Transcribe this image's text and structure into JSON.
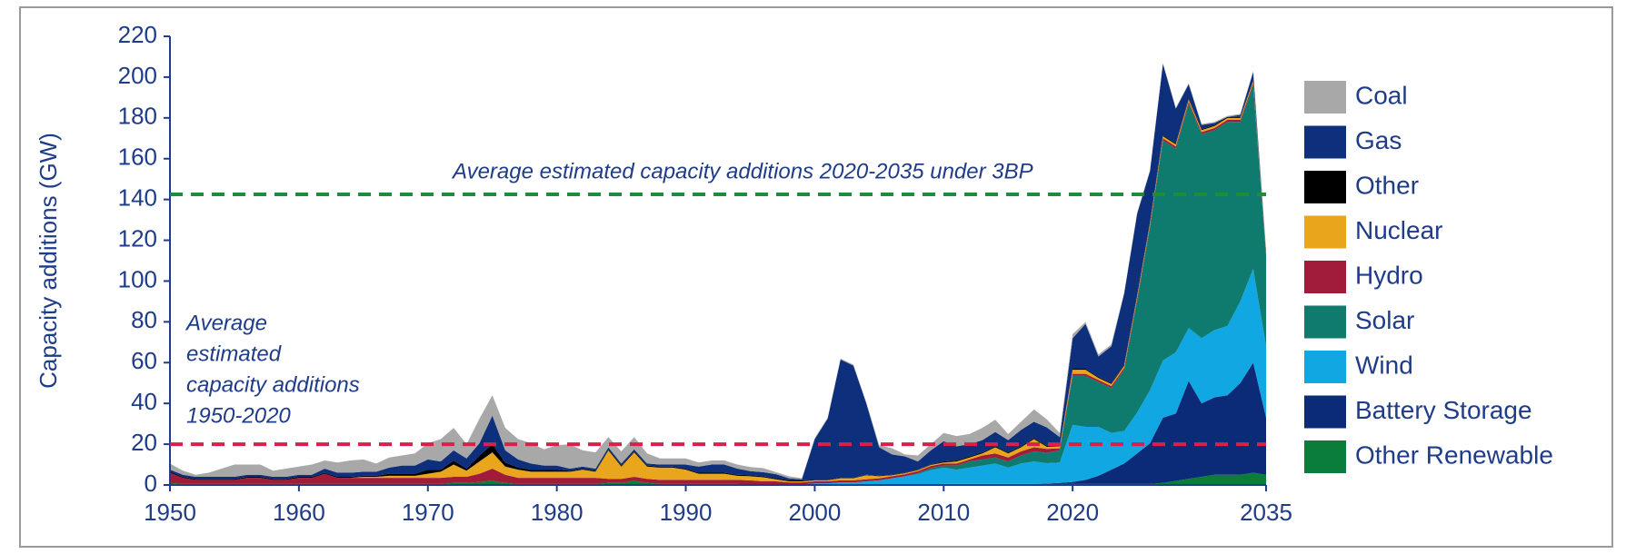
{
  "chart_data": {
    "type": "stacked-area",
    "y_label": "Capacity additions (GW)",
    "x": [
      1950,
      1951,
      1952,
      1953,
      1954,
      1955,
      1956,
      1957,
      1958,
      1959,
      1960,
      1961,
      1962,
      1963,
      1964,
      1965,
      1966,
      1967,
      1968,
      1969,
      1970,
      1971,
      1972,
      1973,
      1974,
      1975,
      1976,
      1977,
      1978,
      1979,
      1980,
      1981,
      1982,
      1983,
      1984,
      1985,
      1986,
      1987,
      1988,
      1989,
      1990,
      1991,
      1992,
      1993,
      1994,
      1995,
      1996,
      1997,
      1998,
      1999,
      2000,
      2001,
      2002,
      2003,
      2004,
      2005,
      2006,
      2007,
      2008,
      2009,
      2010,
      2011,
      2012,
      2013,
      2014,
      2015,
      2016,
      2017,
      2018,
      2019,
      2020,
      2021,
      2022,
      2023,
      2024,
      2025,
      2026,
      2027,
      2028,
      2029,
      2030,
      2031,
      2032,
      2033,
      2034,
      2035
    ],
    "xlim": [
      1950,
      2035
    ],
    "xticks": [
      1950,
      1960,
      1970,
      1980,
      1990,
      2000,
      2010,
      2020,
      2035
    ],
    "ylim": [
      0,
      220
    ],
    "yticks": [
      0,
      20,
      40,
      60,
      80,
      100,
      120,
      140,
      160,
      180,
      200,
      220
    ],
    "series": [
      {
        "name": "Other Renewable",
        "color": "#0b7d3b",
        "values": [
          1,
          0.5,
          0.5,
          0.5,
          0.5,
          0.5,
          0.5,
          0.5,
          0.5,
          0.5,
          0.5,
          0.5,
          0.5,
          0.5,
          0.5,
          0.5,
          0.5,
          0.5,
          0.5,
          0.5,
          0.5,
          0.5,
          1,
          1,
          1.5,
          2,
          1,
          0.5,
          0.5,
          0.5,
          0.5,
          0.5,
          0.5,
          0.5,
          1,
          1,
          2,
          1,
          0.5,
          0.5,
          0.5,
          0.5,
          0.5,
          0.5,
          0.5,
          0.3,
          0.3,
          0.3,
          0.3,
          0.3,
          0.3,
          0.3,
          0.3,
          0.3,
          0.3,
          0.3,
          0.3,
          0.3,
          0.3,
          0.3,
          0.5,
          0.5,
          0.5,
          0.5,
          0.5,
          0.5,
          0.5,
          0.5,
          0.5,
          0.5,
          0.5,
          0.5,
          0.5,
          0.5,
          0.5,
          0.5,
          0.5,
          1,
          2,
          3,
          4,
          5,
          5,
          5,
          6,
          5
        ]
      },
      {
        "name": "Battery Storage",
        "color": "#0b2a78",
        "values": [
          0,
          0,
          0,
          0,
          0,
          0,
          0,
          0,
          0,
          0,
          0,
          0,
          0,
          0,
          0,
          0,
          0,
          0,
          0,
          0,
          0,
          0,
          0,
          0,
          0,
          0,
          0,
          0,
          0,
          0,
          0,
          0,
          0,
          0,
          0,
          0,
          0,
          0,
          0,
          0,
          0,
          0,
          0,
          0,
          0,
          0,
          0,
          0,
          0,
          0,
          0,
          0,
          0,
          0,
          0,
          0,
          0,
          0,
          0,
          0,
          0,
          0,
          0,
          0,
          0,
          0,
          0,
          0,
          0.2,
          0.5,
          1,
          2,
          4,
          7,
          10,
          15,
          20,
          32,
          33,
          48,
          36,
          38,
          39,
          45,
          54,
          28
        ]
      },
      {
        "name": "Wind",
        "color": "#10a7e2",
        "values": [
          0,
          0,
          0,
          0,
          0,
          0,
          0,
          0,
          0,
          0,
          0,
          0,
          0,
          0,
          0,
          0,
          0,
          0,
          0,
          0,
          0,
          0,
          0,
          0,
          0,
          0,
          0,
          0,
          0,
          0,
          0,
          0,
          0,
          0,
          0,
          0,
          0,
          0,
          0,
          0,
          0,
          0,
          0,
          0,
          0,
          0,
          0,
          0,
          0,
          0,
          0.5,
          0.5,
          1,
          1,
          1.5,
          2,
          3,
          4,
          5,
          7,
          8,
          7,
          8,
          9,
          10,
          8,
          10,
          11,
          10,
          10,
          28,
          26,
          24,
          18,
          16,
          20,
          26,
          28,
          30,
          26,
          32,
          33,
          34,
          40,
          46,
          35
        ]
      },
      {
        "name": "Solar",
        "color": "#0f7b6e",
        "values": [
          0,
          0,
          0,
          0,
          0,
          0,
          0,
          0,
          0,
          0,
          0,
          0,
          0,
          0,
          0,
          0,
          0,
          0,
          0,
          0,
          0,
          0,
          0,
          0,
          0,
          0,
          0,
          0,
          0,
          0,
          0,
          0,
          0,
          0,
          0,
          0,
          0,
          0,
          0,
          0,
          0,
          0,
          0,
          0,
          0,
          0,
          0,
          0,
          0,
          0,
          0,
          0,
          0,
          0,
          0,
          0,
          0,
          0,
          0.5,
          1,
          1,
          2,
          3,
          3,
          3,
          3,
          4,
          5,
          5,
          6,
          24,
          25,
          22,
          22,
          30,
          55,
          80,
          108,
          100,
          110,
          100,
          98,
          100,
          88,
          90,
          45
        ]
      },
      {
        "name": "Hydro",
        "color": "#a11c3b",
        "values": [
          5,
          3,
          2,
          2,
          2,
          2,
          3,
          3,
          2,
          2,
          3,
          3,
          5,
          3,
          3,
          3,
          3,
          3,
          3,
          3,
          3,
          3,
          3,
          3,
          4,
          6,
          4,
          3,
          3,
          3,
          3,
          3,
          3,
          3,
          2,
          2,
          2,
          2,
          2,
          2,
          2,
          2,
          2,
          2,
          2,
          2,
          1.5,
          1.5,
          1,
          1,
          1,
          1,
          1,
          1,
          1,
          1,
          1,
          1,
          1,
          1,
          1,
          1,
          1,
          2,
          2,
          2,
          2,
          2,
          2,
          1,
          1,
          1,
          1,
          1,
          1,
          1,
          1,
          1,
          1,
          1,
          1,
          1,
          1,
          1,
          1,
          0.5
        ]
      },
      {
        "name": "Nuclear",
        "color": "#e9a61c",
        "values": [
          0,
          0,
          0,
          0,
          0,
          0,
          0,
          0,
          0,
          0,
          0,
          0,
          0,
          0,
          0,
          0.5,
          0.5,
          1,
          1,
          1,
          2,
          3,
          6,
          3,
          6,
          8,
          4,
          4,
          3,
          3,
          3,
          3,
          4,
          3,
          14,
          6,
          12,
          6,
          6,
          6,
          5,
          3,
          3,
          3,
          2,
          2,
          2,
          1,
          0.5,
          0.5,
          0.5,
          0.5,
          1,
          1,
          2,
          1,
          0.5,
          0.5,
          0.5,
          0.5,
          0.5,
          1,
          1,
          1,
          3,
          2,
          2,
          4,
          1,
          1,
          2,
          2,
          1,
          1,
          1,
          1,
          1,
          1,
          1,
          1,
          1,
          1,
          1,
          1,
          1,
          1
        ]
      },
      {
        "name": "Other",
        "color": "#000000",
        "values": [
          0.5,
          0.5,
          0.5,
          0.5,
          0.5,
          0.5,
          0.5,
          0.5,
          0.5,
          0.5,
          0.5,
          0.5,
          0.5,
          0.5,
          0.5,
          0.5,
          0.5,
          1,
          1,
          1,
          2,
          1,
          2,
          1,
          3,
          4,
          2,
          1,
          1,
          1,
          1,
          0.5,
          0.5,
          0.5,
          0.5,
          0.5,
          0.5,
          0.5,
          0.5,
          0.5,
          0.5,
          0.5,
          0.5,
          0.5,
          0.5,
          0.5,
          0.5,
          0.5,
          0.5,
          0.5,
          0.2,
          0.2,
          0.2,
          0.2,
          0.2,
          0.2,
          0.2,
          0.2,
          0.2,
          0.2,
          0.5,
          0.5,
          0.5,
          0.5,
          0.5,
          0.5,
          0.5,
          0.5,
          0.5,
          0.5,
          0.5,
          0.5,
          0.5,
          0.5,
          0.5,
          0.5,
          0.5,
          0.5,
          0.5,
          0.5,
          0.5,
          0.5,
          0.5,
          0.5,
          0.5,
          0.5
        ]
      },
      {
        "name": "Gas",
        "color": "#0d2f7c",
        "values": [
          1,
          1,
          1,
          1,
          1,
          1,
          1,
          1,
          1,
          1,
          1,
          1,
          2,
          2,
          2,
          2,
          2,
          3,
          4,
          4,
          5,
          4,
          5,
          5,
          6,
          14,
          6,
          4,
          3,
          2,
          2,
          1,
          1,
          1,
          1,
          1,
          1,
          1,
          1,
          1,
          2,
          3,
          4,
          4,
          3,
          2,
          2,
          2,
          1,
          0.5,
          20,
          30,
          58,
          55,
          35,
          14,
          10,
          8,
          4,
          7,
          10,
          7,
          6,
          6,
          7,
          6,
          8,
          8,
          9,
          4,
          15,
          22,
          10,
          18,
          35,
          40,
          25,
          35,
          17,
          7,
          2,
          1,
          0,
          1,
          4,
          0
        ]
      },
      {
        "name": "Coal",
        "color": "#a8a8a8",
        "values": [
          3,
          2,
          1,
          2,
          4,
          6,
          5,
          5,
          3,
          4,
          4,
          5,
          4,
          5,
          6,
          6,
          4,
          5,
          5,
          6,
          8,
          11,
          11,
          7,
          12,
          10,
          11,
          10,
          10,
          8,
          10,
          12,
          8,
          8,
          5,
          6,
          6,
          5,
          3,
          3,
          3,
          2,
          2,
          2,
          2,
          2,
          2,
          1,
          1,
          0.5,
          0.5,
          0.5,
          0.5,
          0.5,
          0.5,
          1,
          3,
          1,
          3,
          3,
          4,
          5,
          5,
          6,
          6,
          3,
          4,
          6,
          4,
          2,
          2,
          1,
          1,
          1,
          0.5,
          0.5,
          0.5,
          0.5,
          0.5,
          0.5,
          0.5,
          0.5,
          0.5,
          0.5,
          0.5,
          0
        ]
      }
    ],
    "reference_lines": [
      {
        "value": 142.5,
        "color": "#1e8c3a",
        "label": [
          "Average estimated capacity additions 2020-2035 under 3BP"
        ]
      },
      {
        "value": 20,
        "color": "#d9204c",
        "label": [
          "Average",
          "estimated",
          "capacity  additions",
          "1950-2020"
        ]
      }
    ]
  }
}
